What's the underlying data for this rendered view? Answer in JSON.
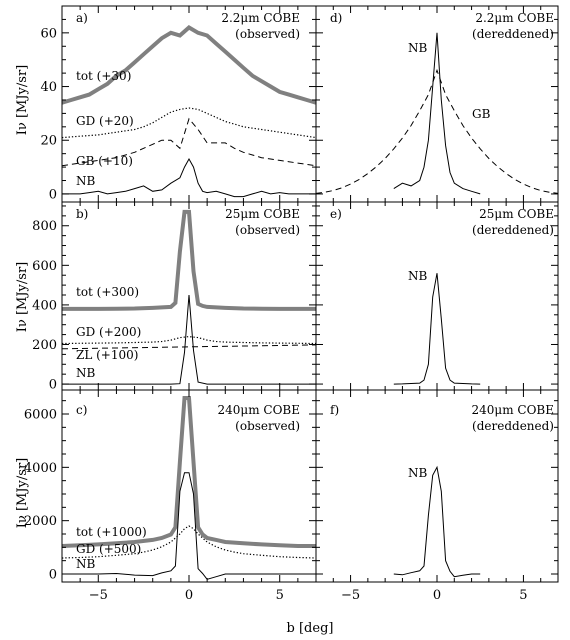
{
  "x_axis": {
    "label": "b [deg]",
    "range": [
      -7,
      7
    ],
    "tick_labels": [
      "−5",
      "0",
      "5"
    ]
  },
  "y_axis_label": "Iν [MJy/sr]",
  "chart_data": [
    {
      "type": "line",
      "panel": "a)",
      "title_line1": "2.2μm COBE",
      "title_line2": "(observed)",
      "ylim": [
        -3,
        70
      ],
      "yticks": [
        0,
        20,
        40,
        60
      ],
      "ytick_labels": [
        "0",
        "20",
        "40",
        "60"
      ],
      "series": [
        {
          "name": "tot (+30)",
          "style": "thick-gray",
          "x": [
            -7,
            -6.5,
            -6,
            -5.5,
            -5,
            -4.5,
            -4,
            -3.5,
            -3,
            -2.5,
            -2,
            -1.5,
            -1,
            -0.5,
            0,
            0.5,
            1,
            1.5,
            2,
            2.5,
            3,
            3.5,
            4,
            4.5,
            5,
            5.5,
            6,
            6.5,
            7
          ],
          "y": [
            34,
            35,
            36,
            37,
            39,
            41,
            44,
            46,
            49,
            52,
            55,
            58,
            60,
            59,
            62,
            60,
            59,
            56,
            53,
            50,
            47,
            44,
            42,
            40,
            38,
            37,
            36,
            35,
            34
          ]
        },
        {
          "name": "GD (+20)",
          "style": "dotted",
          "x": [
            -7,
            -6,
            -5,
            -4,
            -3,
            -2.5,
            -2,
            -1.5,
            -1,
            -0.5,
            0,
            0.5,
            1,
            1.5,
            2,
            2.5,
            3,
            4,
            5,
            6,
            7
          ],
          "y": [
            21,
            21.5,
            22,
            23,
            24,
            25,
            26.5,
            28.5,
            30.5,
            31.5,
            32,
            31.5,
            30,
            28.5,
            27,
            26,
            25,
            24,
            23,
            22,
            21
          ]
        },
        {
          "name": "GB (+10)",
          "style": "dashed",
          "x": [
            -7,
            -6.5,
            -6,
            -5.5,
            -5,
            -4.5,
            -4,
            -3.5,
            -3,
            -2.5,
            -2,
            -1.5,
            -1,
            -0.5,
            0,
            0.5,
            1,
            1.5,
            2,
            2.5,
            3,
            3.5,
            4,
            4.5,
            5,
            5.5,
            6,
            6.5,
            7
          ],
          "y": [
            10.5,
            11,
            11.5,
            12,
            12.5,
            13,
            13.5,
            14.5,
            15.5,
            17,
            18.5,
            20,
            20,
            17,
            28,
            24,
            19,
            19,
            19,
            17,
            15.5,
            14.5,
            13.5,
            13,
            12.5,
            12,
            11.5,
            11,
            10.5
          ]
        },
        {
          "name": "NB",
          "style": "solid",
          "x": [
            -7,
            -6,
            -5.5,
            -5,
            -4.5,
            -4,
            -3.5,
            -3,
            -2.5,
            -2,
            -1.5,
            -1,
            -0.5,
            -0.25,
            0,
            0.25,
            0.5,
            0.75,
            1,
            1.5,
            2,
            2.5,
            3,
            3.5,
            4,
            4.5,
            5,
            5.5,
            6,
            7
          ],
          "y": [
            0,
            0,
            0.5,
            1,
            0,
            0.5,
            1,
            2,
            3,
            1,
            1.5,
            4,
            6,
            10,
            13,
            10,
            4,
            1,
            0.5,
            1,
            0,
            -1,
            -1,
            0,
            1,
            0,
            0.5,
            0,
            0,
            0
          ]
        }
      ]
    },
    {
      "type": "line",
      "panel": "d)",
      "title_line1": "2.2μm COBE",
      "title_line2": "(dereddened)",
      "ylim": [
        -3,
        70
      ],
      "series": [
        {
          "name": "NB",
          "style": "solid",
          "x": [
            -2.5,
            -2,
            -1.5,
            -1,
            -0.75,
            -0.5,
            -0.25,
            0,
            0.25,
            0.5,
            0.75,
            1,
            1.5,
            2,
            2.5
          ],
          "y": [
            2,
            4,
            3,
            5,
            10,
            20,
            40,
            60,
            35,
            18,
            8,
            4,
            2,
            1,
            0
          ]
        },
        {
          "name": "GB",
          "style": "dashed",
          "x": [
            -7,
            -6.5,
            -6,
            -5.5,
            -5,
            -4.5,
            -4,
            -3.5,
            -3,
            -2.5,
            -2,
            -1.5,
            -1,
            -0.5,
            0,
            0.5,
            1,
            1.5,
            2,
            2.5,
            3,
            3.5,
            4,
            4.5,
            5,
            5.5,
            6,
            6.5,
            7
          ],
          "y": [
            0.2,
            0.6,
            1.3,
            2.3,
            3.7,
            5.4,
            7.6,
            10.2,
            13.2,
            16.8,
            20.8,
            25.5,
            31,
            37,
            46,
            37,
            31,
            25.5,
            20.8,
            16.8,
            13.2,
            10.2,
            7.6,
            5.4,
            3.7,
            2.3,
            1.3,
            0.6,
            0.2
          ]
        }
      ]
    },
    {
      "type": "line",
      "panel": "b)",
      "title_line1": "25μm COBE",
      "title_line2": "(observed)",
      "ylim": [
        -30,
        920
      ],
      "yticks": [
        0,
        200,
        400,
        600,
        800
      ],
      "ytick_labels": [
        "0",
        "200",
        "400",
        "600",
        "800"
      ],
      "series": [
        {
          "name": "tot (+300)",
          "style": "thick-gray",
          "x": [
            -7,
            -6,
            -5,
            -4,
            -3,
            -2,
            -1,
            -0.75,
            -0.5,
            -0.25,
            0,
            0.25,
            0.5,
            0.75,
            1,
            2,
            3,
            4,
            5,
            6,
            7
          ],
          "y": [
            380,
            380,
            380,
            381,
            382,
            385,
            390,
            410,
            670,
            870,
            870,
            570,
            405,
            395,
            390,
            385,
            382,
            381,
            380,
            380,
            380
          ]
        },
        {
          "name": "GD (+200)",
          "style": "dotted",
          "x": [
            -7,
            -6,
            -5,
            -4,
            -3,
            -2,
            -1.5,
            -1,
            -0.5,
            0,
            0.5,
            1,
            1.5,
            2,
            3,
            4,
            5,
            6,
            7
          ],
          "y": [
            205,
            206,
            207,
            208,
            210,
            212,
            215,
            222,
            235,
            240,
            235,
            222,
            215,
            212,
            210,
            208,
            207,
            206,
            205
          ]
        },
        {
          "name": "ZL (+100)",
          "style": "dashed",
          "x": [
            -7,
            7
          ],
          "y": [
            178,
            198
          ]
        },
        {
          "name": "NB",
          "style": "solid",
          "x": [
            -7,
            -6,
            -5,
            -4,
            -3,
            -2,
            -1,
            -0.5,
            -0.25,
            0,
            0.25,
            0.5,
            1,
            2,
            3,
            4,
            5,
            6,
            7
          ],
          "y": [
            0,
            0,
            0,
            0,
            0,
            0,
            0,
            2,
            160,
            450,
            170,
            10,
            0,
            0,
            0,
            0,
            0,
            0,
            0
          ]
        }
      ]
    },
    {
      "type": "line",
      "panel": "e)",
      "title_line1": "25μm COBE",
      "title_line2": "(dereddened)",
      "ylim": [
        -30,
        920
      ],
      "series": [
        {
          "name": "NB",
          "style": "solid",
          "x": [
            -2.5,
            -2,
            -1.5,
            -1,
            -0.75,
            -0.5,
            -0.25,
            0,
            0.25,
            0.5,
            0.75,
            1,
            1.5,
            2,
            2.5
          ],
          "y": [
            0,
            1,
            3,
            5,
            20,
            100,
            440,
            560,
            330,
            80,
            20,
            5,
            3,
            1,
            0
          ]
        }
      ]
    },
    {
      "type": "line",
      "panel": "c)",
      "title_line1": "240μm COBE",
      "title_line2": "(observed)",
      "ylim": [
        -300,
        6900
      ],
      "yticks": [
        0,
        2000,
        4000,
        6000
      ],
      "ytick_labels": [
        "0",
        "2000",
        "4000",
        "6000"
      ],
      "series": [
        {
          "name": "tot (+1000)",
          "style": "thick-gray",
          "x": [
            -7,
            -6,
            -5,
            -4,
            -3,
            -2,
            -1.5,
            -1,
            -0.75,
            -0.5,
            -0.25,
            0,
            0.25,
            0.5,
            0.75,
            1,
            1.5,
            2,
            3,
            4,
            5,
            6,
            7
          ],
          "y": [
            1050,
            1080,
            1110,
            1150,
            1200,
            1280,
            1350,
            1480,
            1750,
            4200,
            6600,
            6600,
            4200,
            1750,
            1480,
            1350,
            1280,
            1200,
            1150,
            1110,
            1080,
            1050,
            1050
          ]
        },
        {
          "name": "GD (+500)",
          "style": "dotted",
          "x": [
            -7,
            -6,
            -5,
            -4,
            -3,
            -2.5,
            -2,
            -1.5,
            -1,
            -0.5,
            -0.25,
            0,
            0.25,
            0.5,
            1,
            1.5,
            2,
            2.5,
            3,
            4,
            5,
            6,
            7
          ],
          "y": [
            600,
            620,
            650,
            700,
            760,
            820,
            900,
            1020,
            1200,
            1500,
            1700,
            1800,
            1700,
            1500,
            1200,
            1020,
            900,
            820,
            760,
            700,
            650,
            620,
            600
          ]
        },
        {
          "name": "NB",
          "style": "solid",
          "x": [
            -7,
            -6,
            -5,
            -4,
            -3,
            -2,
            -1.5,
            -1,
            -0.75,
            -0.5,
            -0.25,
            0,
            0.25,
            0.5,
            0.75,
            1,
            1.5,
            2,
            3,
            4,
            5,
            6,
            7
          ],
          "y": [
            0,
            0,
            0,
            20,
            -40,
            -60,
            40,
            120,
            300,
            3100,
            3800,
            3800,
            3000,
            200,
            20,
            -200,
            -100,
            0,
            0,
            0,
            0,
            0,
            0
          ]
        }
      ]
    },
    {
      "type": "line",
      "panel": "f)",
      "title_line1": "240μm COBE",
      "title_line2": "(dereddened)",
      "ylim": [
        -300,
        6900
      ],
      "series": [
        {
          "name": "NB",
          "style": "solid",
          "x": [
            -2.5,
            -2,
            -1.5,
            -1,
            -0.75,
            -0.5,
            -0.25,
            0,
            0.25,
            0.5,
            0.75,
            1,
            1.5,
            2,
            2.5
          ],
          "y": [
            0,
            -30,
            50,
            120,
            300,
            2200,
            3700,
            4000,
            3100,
            500,
            100,
            -100,
            -50,
            0,
            0
          ]
        }
      ]
    }
  ]
}
